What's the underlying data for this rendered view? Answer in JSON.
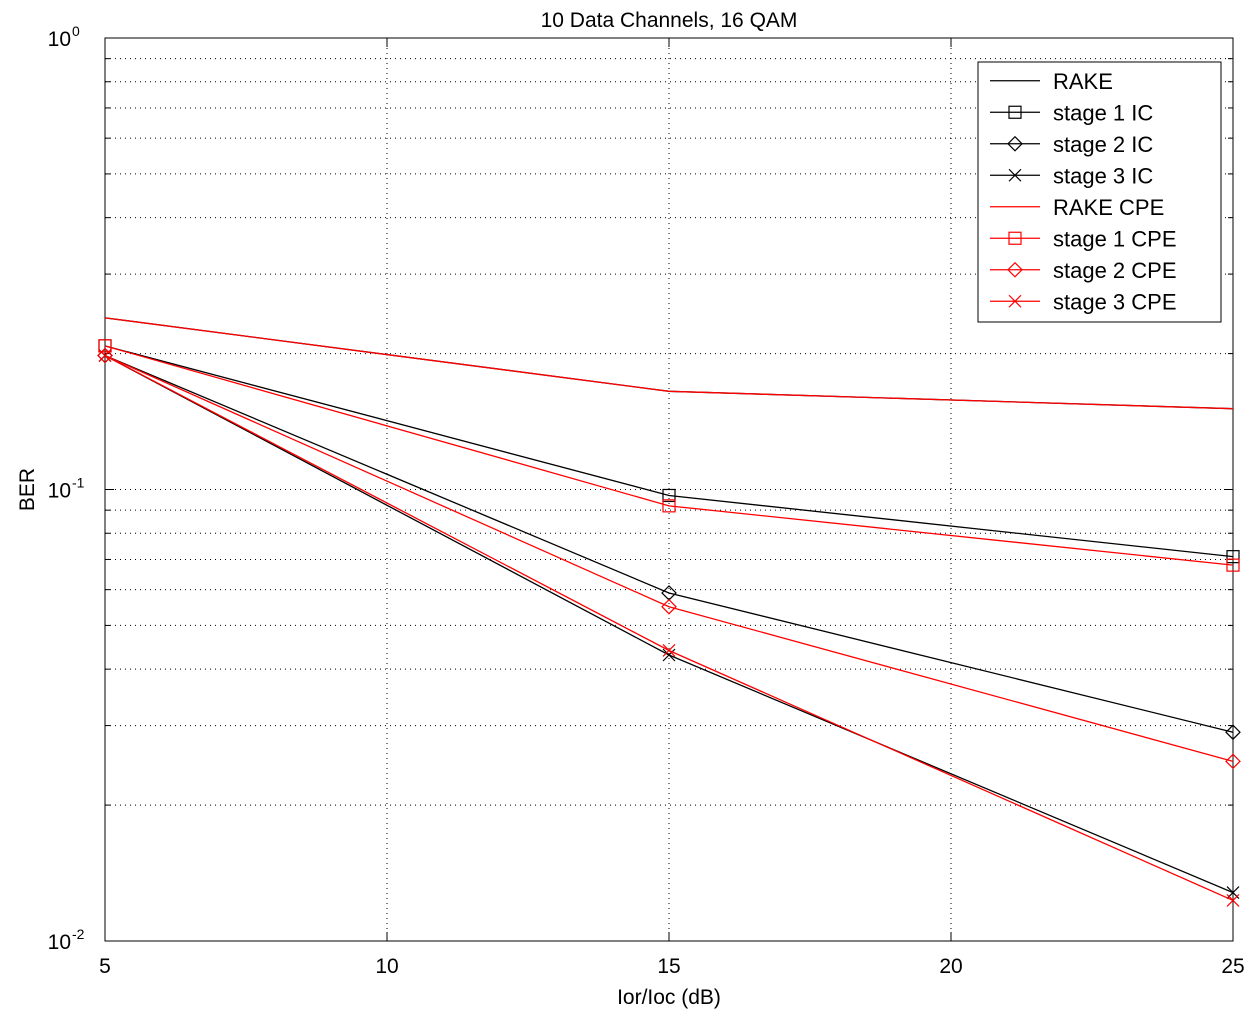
{
  "chart_data": {
    "type": "line",
    "title": "10 Data Channels, 16 QAM",
    "xlabel": "Ior/Ioc (dB)",
    "ylabel": "BER",
    "xlim": [
      5,
      25
    ],
    "ylim": [
      0.01,
      1
    ],
    "yscale": "log",
    "grid": true,
    "legend_position": "top-right",
    "x_ticks": [
      5,
      10,
      15,
      20,
      25
    ],
    "x_tick_labels": [
      "5",
      "10",
      "15",
      "20",
      "25"
    ],
    "y_ticks": [
      0.01,
      0.1,
      1
    ],
    "y_tick_labels": [
      {
        "base": "10",
        "exp": "-2"
      },
      {
        "base": "10",
        "exp": "-1"
      },
      {
        "base": "10",
        "exp": "0"
      }
    ],
    "x": [
      5,
      15,
      25
    ],
    "series": [
      {
        "name": "RAKE",
        "color": "#000000",
        "marker": "none",
        "values": [
          0.24,
          0.165,
          0.151
        ]
      },
      {
        "name": "stage 1 IC",
        "color": "#000000",
        "marker": "square",
        "values": [
          0.208,
          0.097,
          0.071
        ]
      },
      {
        "name": "stage 2 IC",
        "color": "#000000",
        "marker": "diamond",
        "values": [
          0.198,
          0.059,
          0.029
        ]
      },
      {
        "name": "stage 3 IC",
        "color": "#000000",
        "marker": "x",
        "values": [
          0.198,
          0.043,
          0.0128
        ]
      },
      {
        "name": "RAKE CPE",
        "color": "#ff0000",
        "marker": "none",
        "values": [
          0.24,
          0.165,
          0.151
        ]
      },
      {
        "name": "stage 1 CPE",
        "color": "#ff0000",
        "marker": "square",
        "values": [
          0.208,
          0.092,
          0.068
        ]
      },
      {
        "name": "stage 2 CPE",
        "color": "#ff0000",
        "marker": "diamond",
        "values": [
          0.198,
          0.055,
          0.025
        ]
      },
      {
        "name": "stage 3 CPE",
        "color": "#ff0000",
        "marker": "x",
        "values": [
          0.198,
          0.044,
          0.0123
        ]
      }
    ]
  }
}
